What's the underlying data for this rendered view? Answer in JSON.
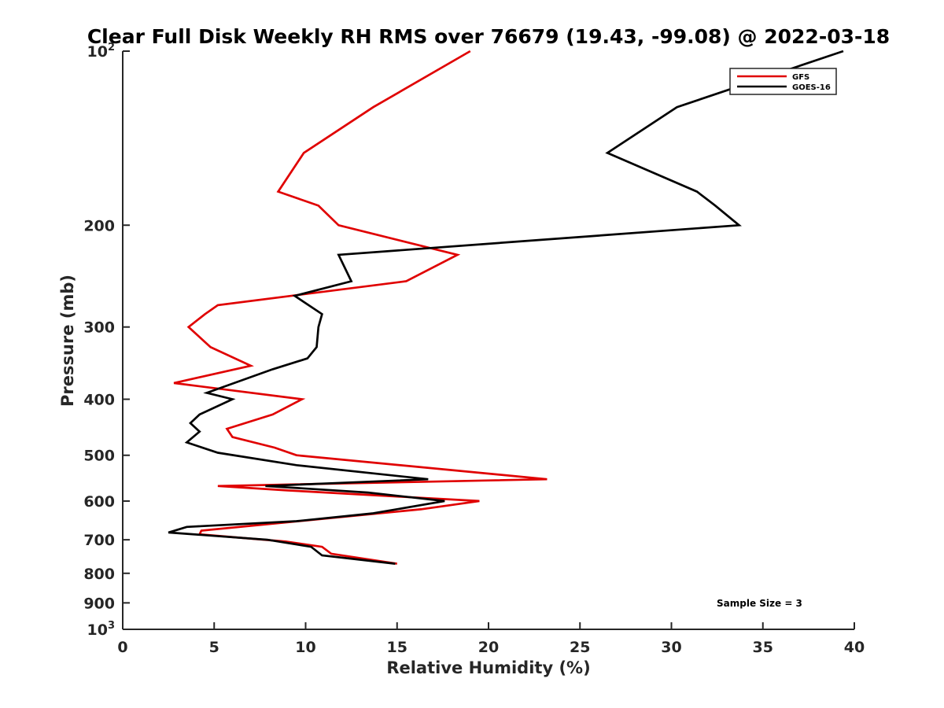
{
  "chart_data": {
    "type": "line",
    "title": "Clear Full Disk Weekly RH RMS over 76679 (19.43, -99.08) @ 2022-03-18",
    "xlabel": "Relative Humidity (%)",
    "ylabel": "Pressure (mb)",
    "xlim": [
      0,
      40
    ],
    "ylim": [
      100,
      1000
    ],
    "y_scale": "log",
    "y_reversed": true,
    "grid": false,
    "legend_position": "top-right",
    "xticks": [
      0,
      5,
      10,
      15,
      20,
      25,
      30,
      35,
      40
    ],
    "xtick_labels": [
      "0",
      "5",
      "10",
      "15",
      "20",
      "25",
      "30",
      "35",
      "40"
    ],
    "yticks": [
      100,
      200,
      300,
      400,
      500,
      600,
      700,
      800,
      900,
      1000
    ],
    "ytick_labels": [
      {
        "base": "10",
        "exp": "2"
      },
      {
        "base": "200",
        "exp": ""
      },
      {
        "base": "300",
        "exp": ""
      },
      {
        "base": "400",
        "exp": ""
      },
      {
        "base": "500",
        "exp": ""
      },
      {
        "base": "600",
        "exp": ""
      },
      {
        "base": "700",
        "exp": ""
      },
      {
        "base": "800",
        "exp": ""
      },
      {
        "base": "900",
        "exp": ""
      },
      {
        "base": "10",
        "exp": "3"
      }
    ],
    "series": [
      {
        "name": "GFS",
        "color": "#e00000",
        "points": [
          [
            19.0,
            100
          ],
          [
            13.7,
            125
          ],
          [
            9.9,
            150
          ],
          [
            8.5,
            175
          ],
          [
            10.7,
            185
          ],
          [
            11.8,
            200
          ],
          [
            18.3,
            225
          ],
          [
            15.5,
            250
          ],
          [
            5.2,
            275
          ],
          [
            4.5,
            285
          ],
          [
            3.6,
            300
          ],
          [
            4.8,
            325
          ],
          [
            7.0,
            350
          ],
          [
            2.8,
            375
          ],
          [
            9.8,
            400
          ],
          [
            8.2,
            425
          ],
          [
            5.7,
            450
          ],
          [
            6.0,
            465
          ],
          [
            8.3,
            485
          ],
          [
            9.5,
            500
          ],
          [
            23.2,
            550
          ],
          [
            5.2,
            565
          ],
          [
            9.0,
            575
          ],
          [
            19.5,
            600
          ],
          [
            16.3,
            620
          ],
          [
            4.3,
            675
          ],
          [
            4.2,
            685
          ],
          [
            8.9,
            705
          ],
          [
            10.9,
            720
          ],
          [
            11.4,
            740
          ],
          [
            15.0,
            770
          ]
        ]
      },
      {
        "name": "GOES-16",
        "color": "#000000",
        "points": [
          [
            39.4,
            100
          ],
          [
            30.3,
            125
          ],
          [
            26.5,
            150
          ],
          [
            31.4,
            175
          ],
          [
            32.4,
            185
          ],
          [
            33.7,
            200
          ],
          [
            11.8,
            225
          ],
          [
            12.5,
            250
          ],
          [
            9.4,
            265
          ],
          [
            10.9,
            285
          ],
          [
            10.7,
            300
          ],
          [
            10.6,
            325
          ],
          [
            10.1,
            340
          ],
          [
            8.2,
            355
          ],
          [
            4.6,
            390
          ],
          [
            6.0,
            400
          ],
          [
            4.2,
            425
          ],
          [
            3.7,
            440
          ],
          [
            4.2,
            455
          ],
          [
            3.5,
            475
          ],
          [
            5.2,
            495
          ],
          [
            9.5,
            520
          ],
          [
            16.7,
            550
          ],
          [
            7.8,
            565
          ],
          [
            13.4,
            580
          ],
          [
            17.6,
            600
          ],
          [
            13.7,
            630
          ],
          [
            9.5,
            650
          ],
          [
            3.5,
            665
          ],
          [
            2.5,
            680
          ],
          [
            7.9,
            700
          ],
          [
            10.3,
            720
          ],
          [
            10.9,
            745
          ],
          [
            14.9,
            770
          ]
        ]
      }
    ],
    "annotations": [
      "Sample Size = 3"
    ]
  }
}
